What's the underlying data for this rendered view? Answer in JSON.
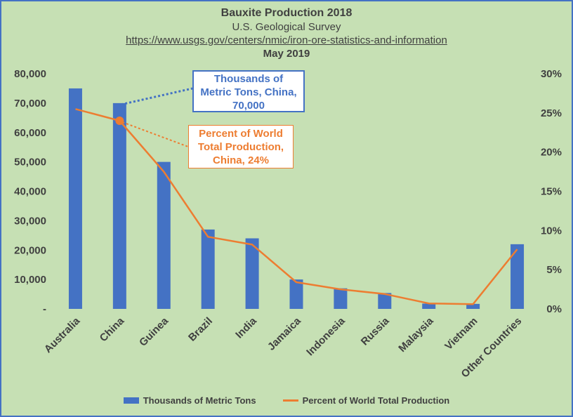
{
  "chart_data": {
    "type": "bar",
    "title": "Bauxite Production 2018",
    "subtitle": "U.S. Geological Survey",
    "source": "https://www.usgs.gov/centers/nmic/iron-ore-statistics-and-information",
    "date": "May 2019",
    "categories": [
      "Australia",
      "China",
      "Guinea",
      "Brazil",
      "India",
      "Jamaica",
      "Indonesia",
      "Russia",
      "Malaysia",
      "Vietnam",
      "Other Countries"
    ],
    "series": [
      {
        "name": "Thousands of Metric Tons",
        "type": "bar",
        "axis": "left",
        "color": "#4472c4",
        "values": [
          75000,
          70000,
          50000,
          27000,
          24000,
          10000,
          7000,
          5400,
          1800,
          1700,
          22000
        ]
      },
      {
        "name": "Percent of World Total Production",
        "type": "line",
        "axis": "right",
        "color": "#ed7d31",
        "values": [
          25.5,
          24,
          17.5,
          9.2,
          8.2,
          3.4,
          2.5,
          1.9,
          0.7,
          0.6,
          7.6
        ]
      }
    ],
    "y_left": {
      "ylim": [
        0,
        80000
      ],
      "ticks": [
        0,
        10000,
        20000,
        30000,
        40000,
        50000,
        60000,
        70000,
        80000
      ],
      "tick_labels": [
        "-",
        "10,000",
        "20,000",
        "30,000",
        "40,000",
        "50,000",
        "60,000",
        "70,000",
        "80,000"
      ]
    },
    "y_right": {
      "ylim": [
        0,
        30
      ],
      "ticks": [
        0,
        5,
        10,
        15,
        20,
        25,
        30
      ],
      "tick_labels": [
        "0%",
        "5%",
        "10%",
        "15%",
        "20%",
        "25%",
        "30%"
      ]
    },
    "annotations": [
      {
        "lines": [
          "Thousands of",
          "Metric Tons, China,",
          "70,000"
        ],
        "color": "#4472c4"
      },
      {
        "lines": [
          "Percent of World",
          "Total Production,",
          "China, 24%"
        ],
        "color": "#ed7d31"
      }
    ],
    "legend_position": "bottom",
    "background": "#c6e0b4",
    "grid": false
  }
}
